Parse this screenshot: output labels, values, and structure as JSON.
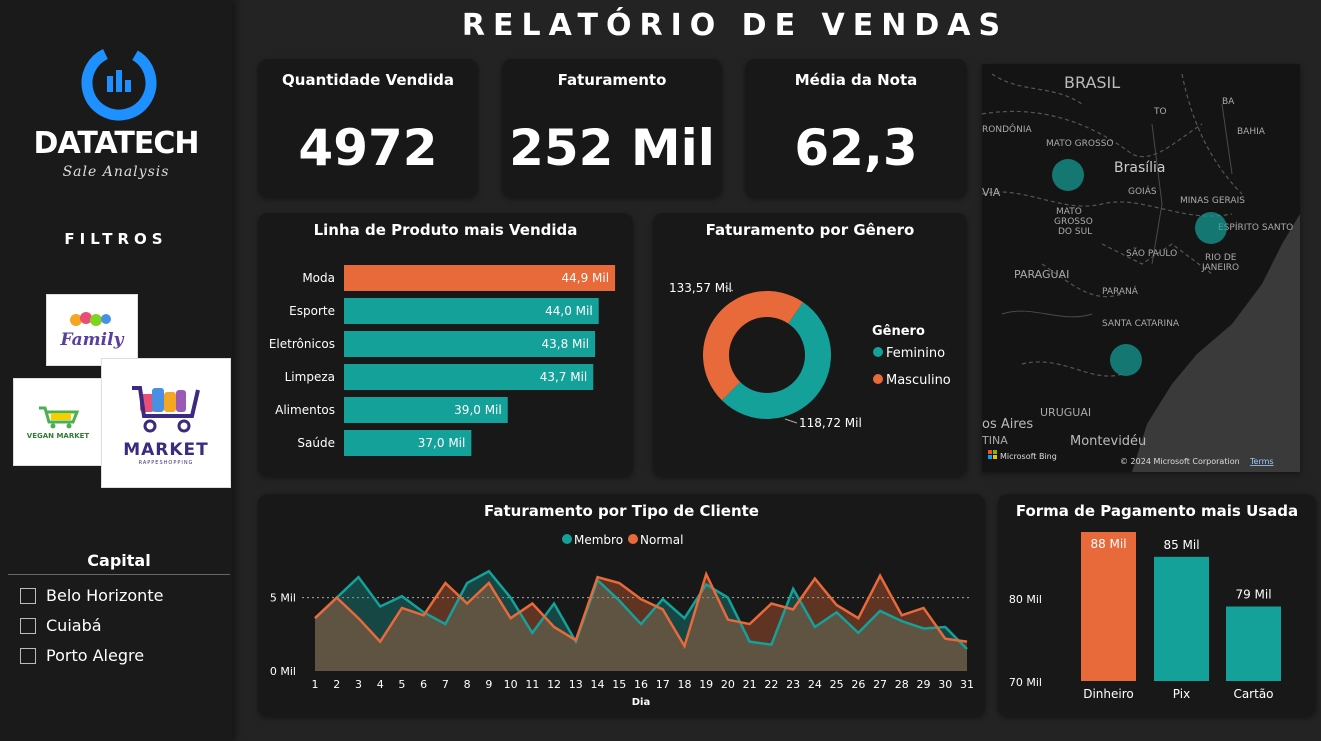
{
  "header": {
    "title": "RELATÓRIO DE VENDAS"
  },
  "sidebar": {
    "brand": "DATATECH",
    "brand_sub": "Sale Analysis",
    "filters_title": "FILTROS",
    "store_logos": [
      {
        "name": "Family",
        "label": "Family"
      },
      {
        "name": "Vegan Market",
        "label": "VEGAN MARKET"
      },
      {
        "name": "Market",
        "label": "MARKET",
        "sub": "RAPPESHOPPING"
      }
    ],
    "capital": {
      "title": "Capital",
      "options": [
        "Belo Horizonte",
        "Cuiabá",
        "Porto Alegre"
      ]
    }
  },
  "kpis": [
    {
      "label": "Quantidade Vendida",
      "value": "4972"
    },
    {
      "label": "Faturamento",
      "value": "252 Mil"
    },
    {
      "label": "Média da Nota",
      "value": "62,3"
    }
  ],
  "map": {
    "labels": [
      "BRASIL",
      "MATO GROSSO",
      "MATO GROSSO DO SUL",
      "Brasília",
      "GOIÁS",
      "MINAS GERAIS",
      "ESPÍRITO SANTO",
      "RIO DE JANEIRO",
      "SÃO PAULO",
      "PARANÁ",
      "SANTA CATARINA",
      "PARAGUAI",
      "URUGUAI",
      "Montevidéu",
      "TO",
      "BA",
      "BAHIA",
      "RONDÔNIA",
      "VIA",
      "os Aires",
      "TINA"
    ],
    "attribution": "© 2024 Microsoft Corporation",
    "terms": "Terms",
    "bing": "Microsoft Bing"
  },
  "colors": {
    "teal": "#14a19a",
    "orange": "#e8693a",
    "card": "#181818",
    "background": "#232323"
  },
  "chart_data": [
    {
      "type": "bar",
      "orientation": "horizontal",
      "title": "Linha de Produto mais Vendida",
      "categories": [
        "Moda",
        "Esporte",
        "Eletrônicos",
        "Limpeza",
        "Alimentos",
        "Saúde"
      ],
      "values": [
        44.9,
        44.0,
        43.8,
        43.7,
        39.0,
        37.0
      ],
      "labels": [
        "44,9 Mil",
        "44,0 Mil",
        "43,8 Mil",
        "43,7 Mil",
        "39,0 Mil",
        "37,0 Mil"
      ],
      "highlight_index": 0,
      "xlim": [
        30,
        45.5
      ]
    },
    {
      "type": "pie",
      "donut": true,
      "title": "Faturamento por Gênero",
      "legend_title": "Gênero",
      "legend_position": "right",
      "slices": [
        {
          "name": "Feminino",
          "value": 133.57,
          "label": "133,57 Mil",
          "color": "#14a19a"
        },
        {
          "name": "Masculino",
          "value": 118.72,
          "label": "118,72 Mil",
          "color": "#e8693a"
        }
      ]
    },
    {
      "type": "area",
      "title": "Faturamento por Tipo de Cliente",
      "xlabel": "Dia",
      "legend_position": "top",
      "x": [
        1,
        2,
        3,
        4,
        5,
        6,
        7,
        8,
        9,
        10,
        11,
        12,
        13,
        14,
        15,
        16,
        17,
        18,
        19,
        20,
        21,
        22,
        23,
        24,
        25,
        26,
        27,
        28,
        29,
        30,
        31
      ],
      "yticks": [
        "0 Mil",
        "5 Mil"
      ],
      "ylim": [
        0,
        7.5
      ],
      "reference_line": 5,
      "series": [
        {
          "name": "Membro",
          "color": "#14a19a",
          "values": [
            3.6,
            5.0,
            6.4,
            4.4,
            5.1,
            4.0,
            3.2,
            6.0,
            6.8,
            5.0,
            2.6,
            4.6,
            2.0,
            6.2,
            4.8,
            3.2,
            4.9,
            3.6,
            5.9,
            5.0,
            2.0,
            1.8,
            5.6,
            3.0,
            4.0,
            2.6,
            4.1,
            3.4,
            2.9,
            3.0,
            1.5
          ]
        },
        {
          "name": "Normal",
          "color": "#e8693a",
          "values": [
            3.6,
            5.0,
            3.6,
            2.0,
            4.3,
            3.8,
            6.0,
            4.6,
            6.0,
            3.6,
            4.6,
            3.0,
            2.1,
            6.4,
            6.0,
            4.9,
            4.2,
            1.7,
            6.6,
            3.5,
            3.2,
            4.6,
            4.2,
            6.3,
            4.5,
            3.6,
            6.5,
            3.8,
            4.3,
            2.2,
            2.0
          ]
        }
      ]
    },
    {
      "type": "bar",
      "title": "Forma de Pagamento mais Usada",
      "categories": [
        "Dinheiro",
        "Pix",
        "Cartão"
      ],
      "values": [
        88,
        85,
        79
      ],
      "labels": [
        "88 Mil",
        "85 Mil",
        "79 Mil"
      ],
      "yticks": [
        "70 Mil",
        "80 Mil"
      ],
      "ylim": [
        70,
        88
      ],
      "highlight_index": 0
    }
  ]
}
